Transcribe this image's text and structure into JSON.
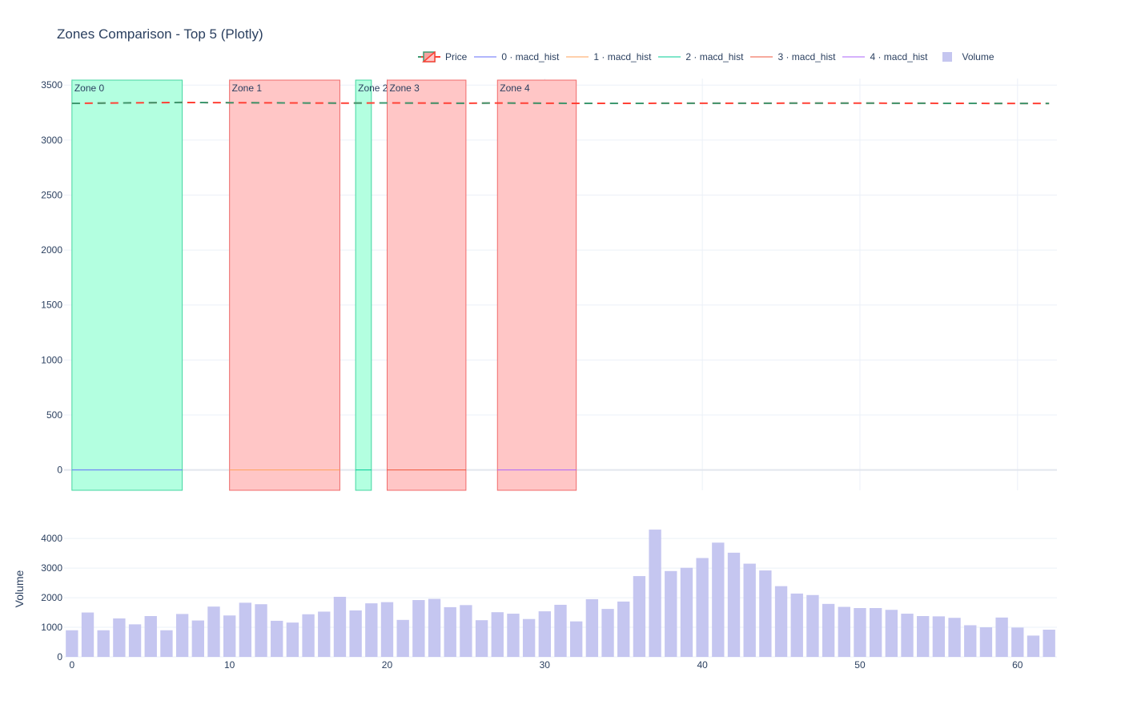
{
  "chart_data": [
    {
      "type": "bar",
      "title": "Zones Comparison - Top 5 (Plotly)",
      "xlim": [
        -0.5,
        62.5
      ],
      "ylim": [
        -185,
        3560
      ],
      "yticks": [
        0,
        500,
        1000,
        1500,
        2000,
        2500,
        3000,
        3500
      ],
      "grid": true,
      "legend": "top-right",
      "price": {
        "name": "Price",
        "x": [
          0,
          7,
          10,
          17,
          20,
          25,
          27,
          32,
          40,
          50,
          60,
          62
        ],
        "y": [
          3334,
          3342,
          3340,
          3336,
          3338,
          3335,
          3337,
          3334,
          3335,
          3336,
          3333,
          3333
        ]
      },
      "zones": [
        {
          "label": "Zone 0",
          "x0": 0,
          "x1": 7,
          "kind": "bullish",
          "fill": "#b3ffe0",
          "line": "#44d6a0"
        },
        {
          "label": "Zone 1",
          "x0": 10,
          "x1": 17,
          "kind": "bearish",
          "fill": "#ffc6c6",
          "line": "#f06b6b"
        },
        {
          "label": "Zone 2",
          "x0": 18,
          "x1": 19,
          "kind": "bullish",
          "fill": "#b3ffe0",
          "line": "#44d6a0"
        },
        {
          "label": "Zone 3",
          "x0": 20,
          "x1": 25,
          "kind": "bearish",
          "fill": "#ffc6c6",
          "line": "#f06b6b"
        },
        {
          "label": "Zone 4",
          "x0": 27,
          "x1": 32,
          "kind": "bearish",
          "fill": "#ffc6c6",
          "line": "#f06b6b"
        }
      ],
      "macd_series": [
        {
          "name": "0 · macd_hist",
          "color": "#636efa",
          "x0": 0,
          "x1": 7,
          "value": 0
        },
        {
          "name": "1 · macd_hist",
          "color": "#ffa15a",
          "x0": 10,
          "x1": 17,
          "value": 0
        },
        {
          "name": "2 · macd_hist",
          "color": "#00cc96",
          "x0": 18,
          "x1": 19,
          "value": 0
        },
        {
          "name": "3 · macd_hist",
          "color": "#ef553b",
          "x0": 20,
          "x1": 25,
          "value": 0
        },
        {
          "name": "4 · macd_hist",
          "color": "#ab63fa",
          "x0": 27,
          "x1": 32,
          "value": 0
        }
      ]
    },
    {
      "type": "bar",
      "ylabel": "Volume",
      "xlim": [
        -0.5,
        62.5
      ],
      "ylim": [
        0,
        4600
      ],
      "xticks": [
        0,
        10,
        20,
        30,
        40,
        50,
        60
      ],
      "yticks": [
        0,
        1000,
        2000,
        3000,
        4000
      ],
      "series": [
        {
          "name": "Volume",
          "color": "#c5c6f0",
          "x": [
            0,
            1,
            2,
            3,
            4,
            5,
            6,
            7,
            8,
            9,
            10,
            11,
            12,
            13,
            14,
            15,
            16,
            17,
            18,
            19,
            20,
            21,
            22,
            23,
            24,
            25,
            26,
            27,
            28,
            29,
            30,
            31,
            32,
            33,
            34,
            35,
            36,
            37,
            38,
            39,
            40,
            41,
            42,
            43,
            44,
            45,
            46,
            47,
            48,
            49,
            50,
            51,
            52,
            53,
            54,
            55,
            56,
            57,
            58,
            59,
            60,
            61,
            62
          ],
          "values": [
            900,
            1500,
            900,
            1300,
            1100,
            1380,
            900,
            1450,
            1230,
            1700,
            1400,
            1830,
            1780,
            1220,
            1160,
            1440,
            1530,
            2030,
            1570,
            1810,
            1850,
            1250,
            1920,
            1960,
            1680,
            1750,
            1240,
            1510,
            1460,
            1280,
            1540,
            1760,
            1200,
            1950,
            1620,
            1870,
            2730,
            4300,
            2900,
            3010,
            3340,
            3860,
            3520,
            3150,
            2920,
            2390,
            2140,
            2090,
            1790,
            1690,
            1650,
            1650,
            1590,
            1460,
            1380,
            1370,
            1320,
            1070,
            1000,
            1330,
            990,
            720,
            920
          ]
        }
      ]
    }
  ],
  "legend_items": {
    "price": "Price",
    "m0": "0 · macd_hist",
    "m1": "1 · macd_hist",
    "m2": "2 · macd_hist",
    "m3": "3 · macd_hist",
    "m4": "4 · macd_hist",
    "volume": "Volume"
  },
  "colors": {
    "price_up": "#3d9970",
    "price_down": "#ff4136",
    "grid": "#ebf0f8",
    "axis_text": "#2a3f5f"
  }
}
